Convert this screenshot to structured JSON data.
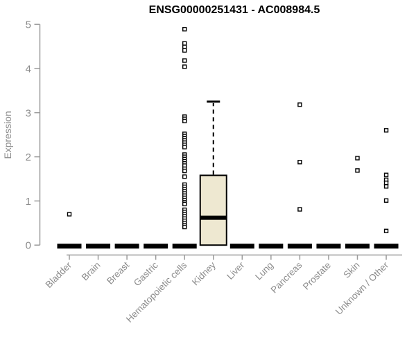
{
  "chart_data": {
    "type": "boxplot",
    "title": "ENSG00000251431 - AC008984.5",
    "ylabel": "Expression",
    "xlabel": "",
    "ylim": [
      0,
      5
    ],
    "yticks": [
      0,
      1,
      2,
      3,
      4,
      5
    ],
    "grid": false,
    "legend": null,
    "categories": [
      "Bladder",
      "Brain",
      "Breast",
      "Gastric",
      "Hematopoietic cells",
      "Kidney",
      "Liver",
      "Lung",
      "Pancreas",
      "Prostate",
      "Skin",
      "Unknown / Other"
    ],
    "boxes": [
      {
        "category": "Bladder",
        "q1": 0,
        "median": 0,
        "q3": 0,
        "whisker_low": 0,
        "whisker_high": 0,
        "outliers": [
          0.7
        ]
      },
      {
        "category": "Brain",
        "q1": 0,
        "median": 0,
        "q3": 0,
        "whisker_low": 0,
        "whisker_high": 0,
        "outliers": []
      },
      {
        "category": "Breast",
        "q1": 0,
        "median": 0,
        "q3": 0,
        "whisker_low": 0,
        "whisker_high": 0,
        "outliers": []
      },
      {
        "category": "Gastric",
        "q1": 0,
        "median": 0,
        "q3": 0,
        "whisker_low": 0,
        "whisker_high": 0,
        "outliers": []
      },
      {
        "category": "Hematopoietic cells",
        "q1": 0,
        "median": 0,
        "q3": 0,
        "whisker_low": 0,
        "whisker_high": 0,
        "outliers": [
          4.89,
          4.57,
          4.49,
          4.41,
          4.18,
          4.04,
          2.91,
          2.86,
          2.81,
          2.52,
          2.47,
          2.42,
          2.37,
          2.32,
          2.27,
          2.22,
          2.05,
          2.0,
          1.95,
          1.9,
          1.85,
          1.8,
          1.73,
          1.68,
          1.55,
          1.37,
          1.32,
          1.27,
          1.22,
          1.17,
          1.12,
          1.07,
          1.02,
          0.97,
          0.93,
          0.8,
          0.75,
          0.7,
          0.65,
          0.6,
          0.55,
          0.5,
          0.45,
          0.41
        ]
      },
      {
        "category": "Kidney",
        "q1": 0,
        "median": 0.62,
        "q3": 1.58,
        "whisker_low": 0,
        "whisker_high": 3.25,
        "outliers": []
      },
      {
        "category": "Liver",
        "q1": 0,
        "median": 0,
        "q3": 0,
        "whisker_low": 0,
        "whisker_high": 0,
        "outliers": []
      },
      {
        "category": "Lung",
        "q1": 0,
        "median": 0,
        "q3": 0,
        "whisker_low": 0,
        "whisker_high": 0,
        "outliers": []
      },
      {
        "category": "Pancreas",
        "q1": 0,
        "median": 0,
        "q3": 0,
        "whisker_low": 0,
        "whisker_high": 0,
        "outliers": [
          3.18,
          1.88,
          0.81
        ]
      },
      {
        "category": "Prostate",
        "q1": 0,
        "median": 0,
        "q3": 0,
        "whisker_low": 0,
        "whisker_high": 0,
        "outliers": []
      },
      {
        "category": "Skin",
        "q1": 0,
        "median": 0,
        "q3": 0,
        "whisker_low": 0,
        "whisker_high": 0,
        "outliers": [
          1.97,
          1.69
        ]
      },
      {
        "category": "Unknown / Other",
        "q1": 0,
        "median": 0,
        "q3": 0,
        "whisker_low": 0,
        "whisker_high": 0,
        "outliers": [
          2.6,
          1.59,
          1.48,
          1.41,
          1.33,
          1.01,
          0.32
        ]
      }
    ],
    "colors": {
      "box_fill": "#EEE8D1",
      "box_border": "#000000",
      "median": "#000000",
      "zero_bar": "#000000",
      "axis": "#9B9B9B",
      "tick_label": "#8B8B8B",
      "title": "#000000",
      "outlier_fill": "#FFFFFF",
      "outlier_border": "#000000"
    }
  }
}
